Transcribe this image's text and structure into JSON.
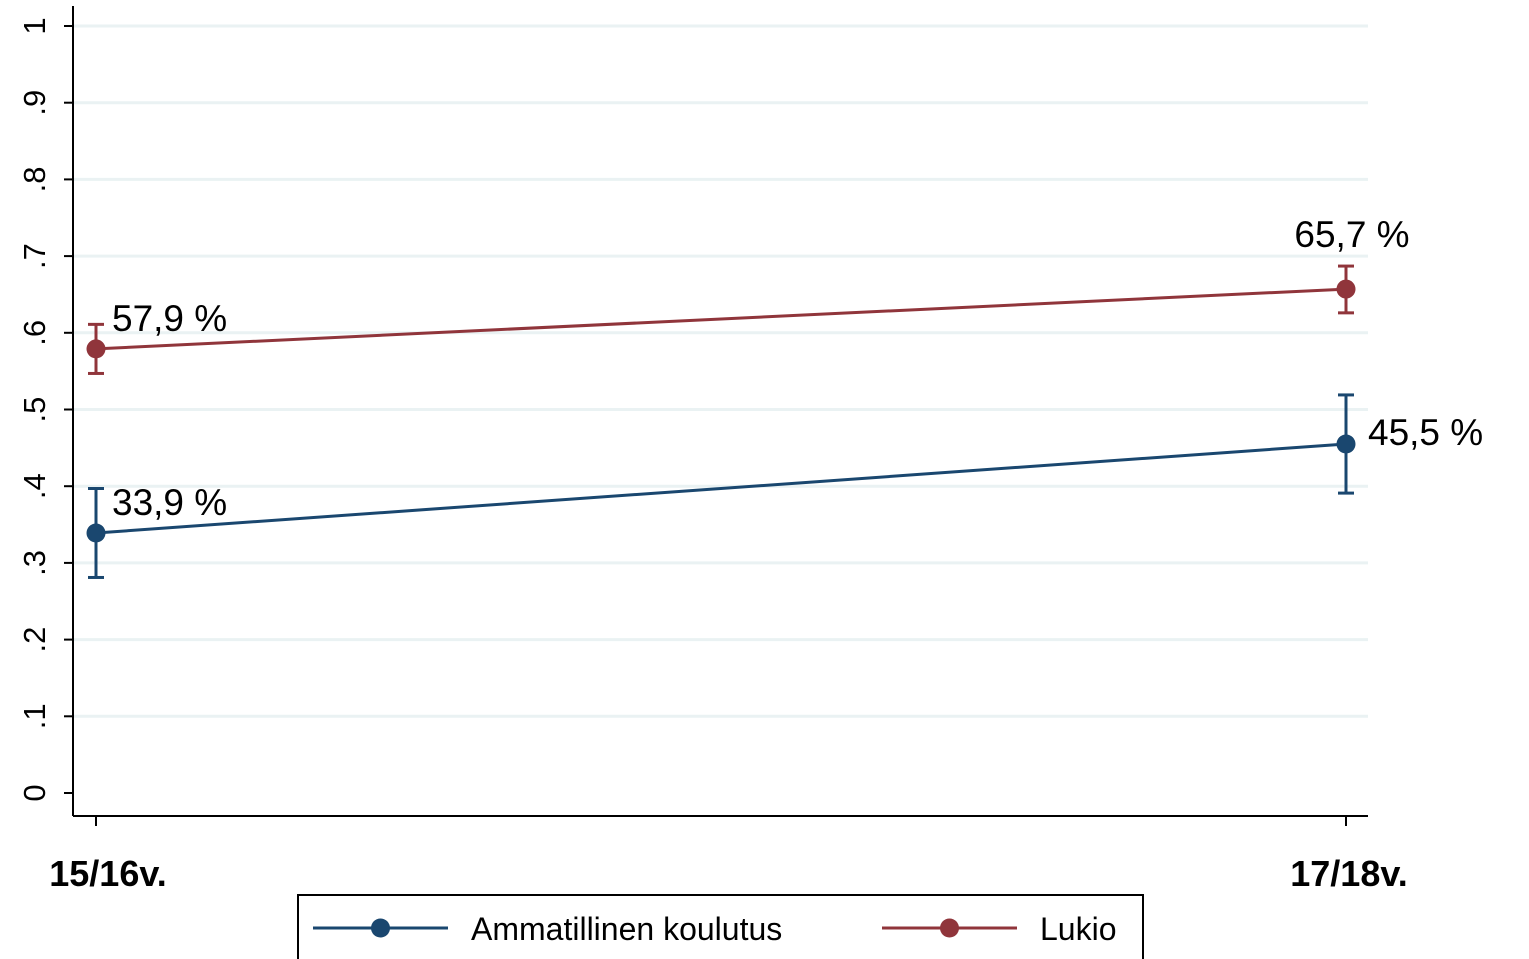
{
  "chart_data": {
    "type": "line",
    "categories": [
      "15/16v.",
      "17/18v."
    ],
    "series": [
      {
        "name": "Ammatillinen koulutus",
        "color": "#1a476f",
        "values": [
          0.339,
          0.455
        ],
        "ci_low": [
          0.281,
          0.391
        ],
        "ci_high": [
          0.397,
          0.519
        ],
        "labels": [
          "33,9 %",
          "45,5 %"
        ]
      },
      {
        "name": "Lukio",
        "color": "#90353b",
        "values": [
          0.579,
          0.657
        ],
        "ci_low": [
          0.547,
          0.626
        ],
        "ci_high": [
          0.611,
          0.687
        ],
        "labels": [
          "57,9 %",
          "65,7 %"
        ]
      }
    ],
    "ylim": [
      0,
      1
    ],
    "yticks": [
      0,
      0.1,
      0.2,
      0.3,
      0.4,
      0.5,
      0.6,
      0.7,
      0.8,
      0.9,
      1
    ],
    "ytick_labels": [
      "0",
      ".1",
      ".2",
      ".3",
      ".4",
      ".5",
      ".6",
      ".7",
      ".8",
      ".9",
      "1"
    ],
    "grid": true,
    "gridline_color": "#eaf2f3",
    "legend_position": "bottom",
    "title": "",
    "xlabel": "",
    "ylabel": ""
  }
}
